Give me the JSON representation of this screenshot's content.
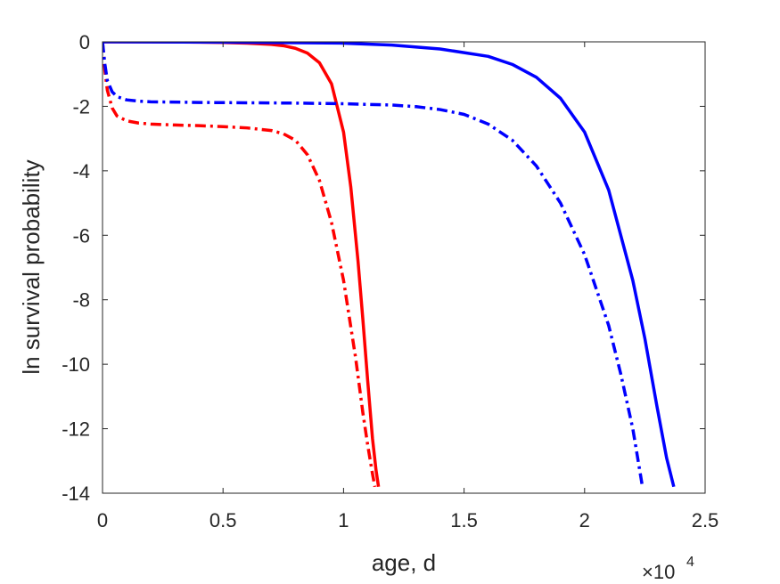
{
  "chart_data": {
    "type": "line",
    "title": "",
    "xlabel": "age, d",
    "ylabel": "ln survival probability",
    "x_multiplier_label": "×10",
    "x_multiplier_exponent": "4",
    "xlim": [
      0,
      2.5
    ],
    "ylim": [
      -14,
      0
    ],
    "x_unit_scale": 10000,
    "xticks": [
      0,
      0.5,
      1,
      1.5,
      2,
      2.5
    ],
    "xtick_labels": [
      "0",
      "0.5",
      "1",
      "1.5",
      "2",
      "2.5"
    ],
    "yticks": [
      0,
      -2,
      -4,
      -6,
      -8,
      -10,
      -12,
      -14
    ],
    "ytick_labels": [
      "0",
      "-2",
      "-4",
      "-6",
      "-8",
      "-10",
      "-12",
      "-14"
    ],
    "grid": false,
    "legend": "none",
    "series": [
      {
        "color": "#ff0000",
        "style": "solid",
        "x": [
          0,
          0.2,
          0.4,
          0.5,
          0.6,
          0.7,
          0.75,
          0.8,
          0.85,
          0.9,
          0.95,
          1.0,
          1.03,
          1.06,
          1.08,
          1.1,
          1.12,
          1.135,
          1.145
        ],
        "y": [
          0,
          0,
          -0.01,
          -0.02,
          -0.04,
          -0.08,
          -0.12,
          -0.2,
          -0.35,
          -0.65,
          -1.3,
          -2.8,
          -4.5,
          -6.8,
          -8.6,
          -10.5,
          -12.3,
          -13.3,
          -13.8
        ]
      },
      {
        "color": "#ff0000",
        "style": "dashdot",
        "x": [
          0,
          0.01,
          0.02,
          0.04,
          0.06,
          0.1,
          0.15,
          0.2,
          0.3,
          0.4,
          0.5,
          0.6,
          0.7,
          0.75,
          0.8,
          0.85,
          0.9,
          0.95,
          1.0,
          1.05,
          1.08,
          1.1,
          1.12,
          1.13
        ],
        "y": [
          0,
          -0.9,
          -1.5,
          -2.05,
          -2.3,
          -2.45,
          -2.52,
          -2.55,
          -2.58,
          -2.6,
          -2.63,
          -2.67,
          -2.75,
          -2.85,
          -3.05,
          -3.5,
          -4.3,
          -5.6,
          -7.4,
          -9.8,
          -11.5,
          -12.5,
          -13.4,
          -13.8
        ]
      },
      {
        "color": "#0000ff",
        "style": "solid",
        "x": [
          0,
          0.5,
          1.0,
          1.2,
          1.4,
          1.6,
          1.7,
          1.8,
          1.9,
          2.0,
          2.1,
          2.2,
          2.25,
          2.3,
          2.34,
          2.37
        ],
        "y": [
          0,
          -0.01,
          -0.04,
          -0.1,
          -0.22,
          -0.45,
          -0.7,
          -1.1,
          -1.75,
          -2.8,
          -4.6,
          -7.4,
          -9.2,
          -11.3,
          -12.9,
          -13.8
        ]
      },
      {
        "color": "#0000ff",
        "style": "dashdot",
        "x": [
          0,
          0.01,
          0.02,
          0.04,
          0.06,
          0.1,
          0.15,
          0.2,
          0.4,
          0.6,
          0.8,
          1.0,
          1.2,
          1.3,
          1.4,
          1.5,
          1.6,
          1.7,
          1.8,
          1.9,
          2.0,
          2.1,
          2.15,
          2.2,
          2.24
        ],
        "y": [
          0,
          -0.7,
          -1.2,
          -1.55,
          -1.7,
          -1.8,
          -1.84,
          -1.86,
          -1.88,
          -1.89,
          -1.9,
          -1.92,
          -1.96,
          -2.01,
          -2.1,
          -2.25,
          -2.55,
          -3.05,
          -3.85,
          -5.0,
          -6.6,
          -8.8,
          -10.3,
          -12.0,
          -13.8
        ]
      }
    ]
  }
}
